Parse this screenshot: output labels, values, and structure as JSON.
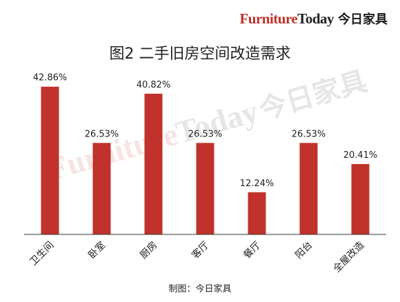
{
  "brand": {
    "furniture": "Furniture",
    "today": "Today",
    "cn": "今日家具"
  },
  "source": "制图：今日家具",
  "colors": {
    "bar": "#c0322b",
    "axis": "#333333",
    "text": "#222222"
  },
  "chart_data": {
    "type": "bar",
    "title": "图2  二手旧房空间改造需求",
    "categories": [
      "卫生间",
      "卧室",
      "厨房",
      "客厅",
      "餐厅",
      "阳台",
      "全屋改造"
    ],
    "values": [
      42.86,
      26.53,
      40.82,
      26.53,
      12.24,
      26.53,
      20.41
    ],
    "value_labels": [
      "42.86%",
      "26.53%",
      "40.82%",
      "26.53%",
      "12.24%",
      "26.53%",
      "20.41%"
    ],
    "xlabel": "",
    "ylabel": "",
    "ylim": [
      0,
      45
    ],
    "grid": false,
    "legend": "none"
  }
}
